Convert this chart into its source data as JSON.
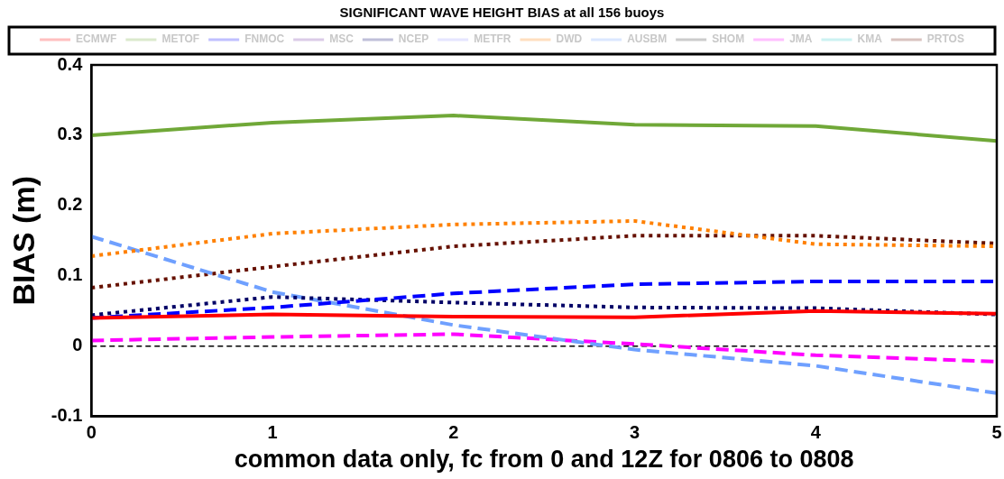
{
  "chart_data": {
    "type": "line",
    "title": "SIGNIFICANT WAVE HEIGHT BIAS at all 156 buoys",
    "xlabel": "common data only, fc from 0 and 12Z for 0806 to 0808",
    "ylabel": "BIAS (m)",
    "x": [
      0,
      1,
      2,
      3,
      4,
      5
    ],
    "series": [
      {
        "name": "ECMWF",
        "color": "#ff0000",
        "line_style": "solid",
        "values": [
          0.04,
          0.045,
          0.042,
          0.041,
          0.05,
          0.046
        ]
      },
      {
        "name": "METOF",
        "color": "#70a838",
        "line_style": "solid",
        "values": [
          0.3,
          0.318,
          0.328,
          0.315,
          0.313,
          0.292
        ]
      },
      {
        "name": "FNMOC",
        "color": "#0000ff",
        "line_style": "dashed",
        "values": [
          0.04,
          0.055,
          0.075,
          0.088,
          0.092,
          0.092
        ]
      },
      {
        "name": "MSC",
        "color": "#7030a0",
        "line_style": "dashed",
        "values": [
          null,
          null,
          null,
          null,
          null,
          null
        ]
      },
      {
        "name": "NCEP",
        "color": "#000066",
        "line_style": "dotted",
        "values": [
          0.044,
          0.07,
          0.062,
          0.055,
          0.054,
          0.045
        ]
      },
      {
        "name": "METFR",
        "color": "#9999ff",
        "line_style": "dashed",
        "values": [
          null,
          null,
          null,
          null,
          null,
          null
        ]
      },
      {
        "name": "DWD",
        "color": "#ff8000",
        "line_style": "dotted",
        "values": [
          0.128,
          0.16,
          0.173,
          0.178,
          0.145,
          0.142
        ]
      },
      {
        "name": "AUSBM",
        "color": "#6fa0ff",
        "line_style": "dashed",
        "values": [
          0.156,
          0.077,
          0.03,
          -0.005,
          -0.028,
          -0.067
        ]
      },
      {
        "name": "SHOM",
        "color": "#333333",
        "line_style": "dotted",
        "values": [
          null,
          null,
          null,
          null,
          null,
          null
        ]
      },
      {
        "name": "JMA",
        "color": "#ff00ff",
        "line_style": "dashed",
        "values": [
          0.008,
          0.013,
          0.017,
          0.003,
          -0.013,
          -0.022
        ]
      },
      {
        "name": "KMA",
        "color": "#33cccc",
        "line_style": "dotted",
        "values": [
          null,
          null,
          null,
          null,
          null,
          null
        ]
      },
      {
        "name": "PRTOS",
        "color": "#661100",
        "line_style": "dotted",
        "values": [
          0.083,
          0.113,
          0.142,
          0.157,
          0.157,
          0.146
        ]
      }
    ],
    "xlim": [
      0,
      5
    ],
    "xticks": [
      0,
      1,
      2,
      3,
      4,
      5
    ],
    "ylim": [
      -0.1,
      0.4
    ],
    "yticks": [
      -0.1,
      0,
      0.1,
      0.2,
      0.3,
      0.4
    ],
    "ref_lines": [
      {
        "axis": "y",
        "value": 0,
        "color": "#000000",
        "line_style": "dashed"
      }
    ],
    "grid": false,
    "legend": "top",
    "marker": "none"
  }
}
